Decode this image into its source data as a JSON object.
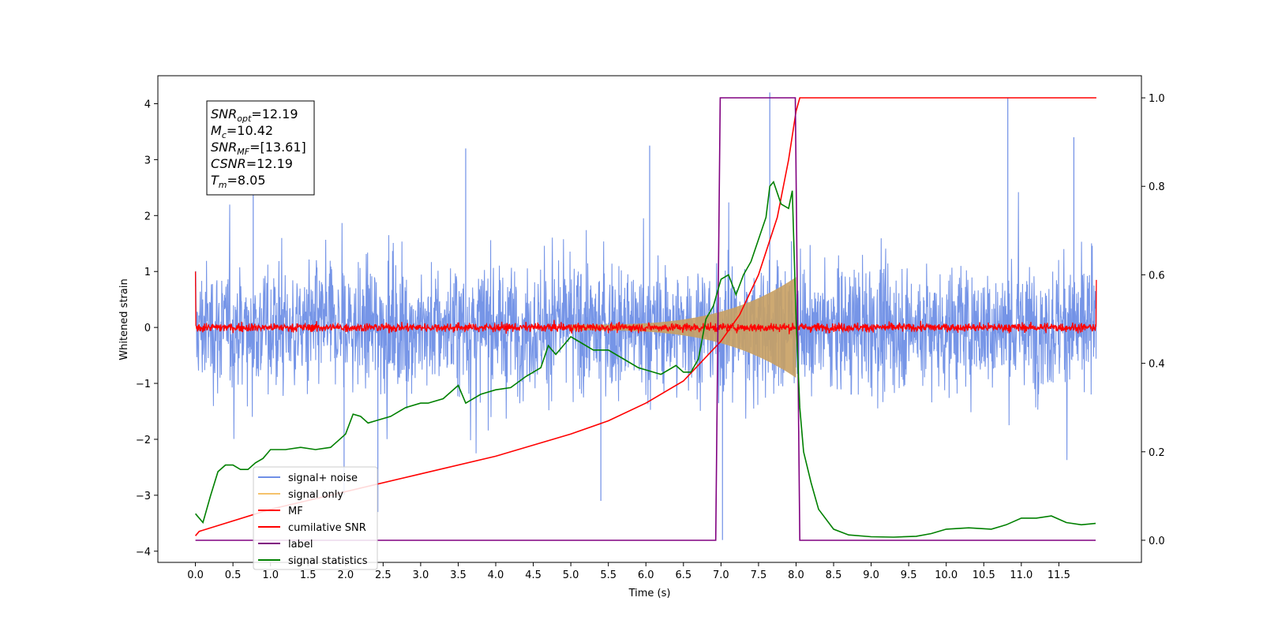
{
  "chart_data": {
    "type": "line",
    "xlabel": "Time (s)",
    "ylabel": "Whitened strain",
    "xlim": [
      -0.5,
      12.6
    ],
    "ylim_left": [
      -4.2,
      4.5
    ],
    "ylim_right": [
      -0.05,
      1.05
    ],
    "x_ticks": [
      "0.0",
      "0.5",
      "1.0",
      "1.5",
      "2.0",
      "2.5",
      "3.0",
      "3.5",
      "4.0",
      "4.5",
      "5.0",
      "5.5",
      "6.0",
      "6.5",
      "7.0",
      "7.5",
      "8.0",
      "8.5",
      "9.0",
      "9.5",
      "10.0",
      "10.5",
      "11.0",
      "11.5"
    ],
    "y_ticks_left": [
      "−4",
      "−3",
      "−2",
      "−1",
      "0",
      "1",
      "2",
      "3",
      "4"
    ],
    "y_ticks_right": [
      "0.0",
      "0.2",
      "0.4",
      "0.6",
      "0.8",
      "1.0"
    ],
    "grid": false,
    "legend_position": "lower-left",
    "info_box": [
      {
        "var": "SNR",
        "sub": "opt",
        "rest": "=12.19"
      },
      {
        "var": "M",
        "sub": "c",
        "rest": "=10.42"
      },
      {
        "var": "SNR",
        "sub": "MF",
        "rest": "=[13.61]"
      },
      {
        "var": "CSNR",
        "sub": "",
        "rest": "=12.19"
      },
      {
        "var": "T",
        "sub": "m",
        "rest": "=8.05"
      }
    ],
    "series": [
      {
        "name": "signal+ noise",
        "color": "#6f8fe6",
        "axis": "left",
        "kind": "noise",
        "t_start": 0.0,
        "t_end": 12.0,
        "typical_amplitude": 1.6,
        "max_peak": 4.2,
        "min_peak": -3.8
      },
      {
        "name": "signal only",
        "color": "#f5c26b",
        "axis": "left",
        "kind": "chirp_envelope",
        "t_start": 5.0,
        "t_end": 8.0,
        "peak_amplitude": 0.85,
        "end_amplitude": -0.9
      },
      {
        "name": "MF",
        "color": "#ff0000",
        "axis": "left",
        "kind": "noise",
        "t_start": 0.0,
        "t_end": 12.0,
        "typical_amplitude": 0.12,
        "start_value": 1.0,
        "end_value": 0.85
      },
      {
        "name": "cumilative SNR",
        "color": "#ff0000",
        "axis": "right",
        "x": [
          0.0,
          0.05,
          1.0,
          2.0,
          3.0,
          4.0,
          5.0,
          5.5,
          6.0,
          6.5,
          7.0,
          7.25,
          7.5,
          7.75,
          7.9,
          8.0,
          8.05,
          12.0
        ],
        "y": [
          0.01,
          0.02,
          0.07,
          0.11,
          0.15,
          0.19,
          0.24,
          0.27,
          0.31,
          0.36,
          0.45,
          0.51,
          0.6,
          0.73,
          0.86,
          0.97,
          1.0,
          1.0
        ]
      },
      {
        "name": "label",
        "color": "#800080",
        "axis": "right",
        "x": [
          0.0,
          6.93,
          6.99,
          7.99,
          8.05,
          11.99
        ],
        "y": [
          0.0,
          0.0,
          1.0,
          1.0,
          0.0,
          0.0
        ]
      },
      {
        "name": "signal statistics",
        "color": "#008000",
        "axis": "right",
        "x": [
          0.0,
          0.1,
          0.2,
          0.3,
          0.4,
          0.5,
          0.6,
          0.7,
          0.8,
          0.9,
          1.0,
          1.2,
          1.4,
          1.6,
          1.8,
          1.9,
          2.0,
          2.1,
          2.2,
          2.3,
          2.4,
          2.6,
          2.8,
          3.0,
          3.1,
          3.3,
          3.5,
          3.6,
          3.8,
          4.0,
          4.2,
          4.4,
          4.5,
          4.6,
          4.7,
          4.8,
          5.0,
          5.1,
          5.3,
          5.5,
          5.7,
          5.9,
          6.0,
          6.2,
          6.4,
          6.5,
          6.6,
          6.7,
          6.8,
          6.9,
          7.0,
          7.1,
          7.2,
          7.3,
          7.4,
          7.5,
          7.6,
          7.65,
          7.7,
          7.8,
          7.9,
          7.95,
          8.0,
          8.05,
          8.1,
          8.2,
          8.3,
          8.5,
          8.7,
          9.0,
          9.3,
          9.6,
          9.8,
          10.0,
          10.3,
          10.6,
          10.8,
          11.0,
          11.2,
          11.4,
          11.6,
          11.8,
          11.99
        ],
        "y": [
          0.06,
          0.04,
          0.1,
          0.155,
          0.17,
          0.17,
          0.16,
          0.16,
          0.175,
          0.185,
          0.205,
          0.205,
          0.21,
          0.205,
          0.21,
          0.225,
          0.24,
          0.285,
          0.28,
          0.265,
          0.27,
          0.28,
          0.3,
          0.31,
          0.31,
          0.32,
          0.35,
          0.31,
          0.33,
          0.34,
          0.345,
          0.37,
          0.38,
          0.39,
          0.44,
          0.42,
          0.46,
          0.45,
          0.43,
          0.43,
          0.41,
          0.39,
          0.385,
          0.375,
          0.395,
          0.38,
          0.38,
          0.41,
          0.5,
          0.53,
          0.59,
          0.6,
          0.555,
          0.6,
          0.63,
          0.68,
          0.73,
          0.8,
          0.81,
          0.76,
          0.75,
          0.79,
          0.5,
          0.3,
          0.2,
          0.13,
          0.07,
          0.025,
          0.012,
          0.008,
          0.007,
          0.009,
          0.015,
          0.025,
          0.028,
          0.025,
          0.035,
          0.05,
          0.05,
          0.055,
          0.04,
          0.035,
          0.038
        ]
      }
    ]
  }
}
